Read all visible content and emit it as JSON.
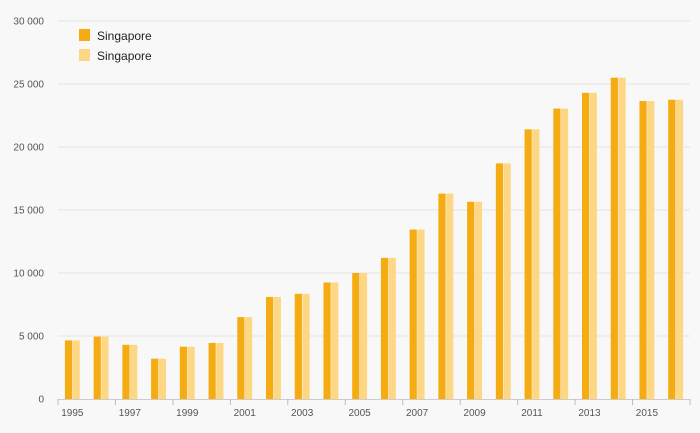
{
  "chart_data": {
    "type": "bar",
    "title": "",
    "xlabel": "",
    "ylabel": "",
    "categories": [
      "1995",
      "1996",
      "1997",
      "1998",
      "1999",
      "2000",
      "2001",
      "2002",
      "2003",
      "2004",
      "2005",
      "2006",
      "2007",
      "2008",
      "2009",
      "2010",
      "2011",
      "2012",
      "2013",
      "2014",
      "2015",
      "2016"
    ],
    "x_tick_labels": [
      "1995",
      "1997",
      "1999",
      "2001",
      "2003",
      "2005",
      "2007",
      "2009",
      "2011",
      "2013",
      "2015"
    ],
    "y_tick_labels": [
      "0",
      "5 000",
      "10 000",
      "15 000",
      "20 000",
      "25 000",
      "30 000"
    ],
    "ylim": [
      0,
      30000
    ],
    "y_ticks": [
      0,
      5000,
      10000,
      15000,
      20000,
      25000,
      30000
    ],
    "grid": true,
    "legend_position": "top-left",
    "series": [
      {
        "name": "Singapore",
        "color": "#f5ac13",
        "values": [
          4650,
          4950,
          4300,
          3200,
          4150,
          4450,
          6500,
          8100,
          8350,
          9250,
          10000,
          11200,
          13450,
          16300,
          15650,
          18700,
          21400,
          23050,
          24300,
          25500,
          23650,
          23750
        ]
      },
      {
        "name": "Singapore",
        "color": "#fdd783",
        "values": [
          4650,
          4950,
          4300,
          3200,
          4150,
          4450,
          6500,
          8100,
          8350,
          9250,
          10000,
          11200,
          13450,
          16300,
          15650,
          18700,
          21400,
          23050,
          24300,
          25500,
          23650,
          23750
        ]
      }
    ]
  }
}
